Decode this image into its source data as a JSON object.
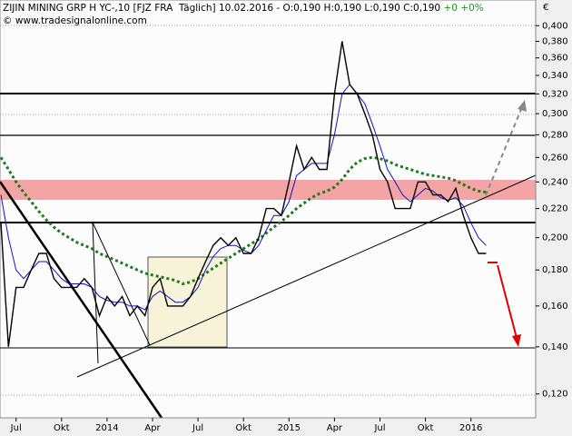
{
  "chart_data": {
    "type": "line",
    "title": "ZIJIN MINING GRP H YC-,10 [FJZ FRA  Täglich] 10.02.2016 - O:0,190 H:0,190 L:0,190 C:0,190",
    "change": "+0 +0%",
    "copyright": "© www.tradesignalonline.com",
    "currency": "€",
    "log_scale": true,
    "categories": [
      null,
      null,
      "Jul",
      null,
      null,
      null,
      null,
      null,
      "Okt",
      null,
      null,
      null,
      null,
      null,
      "2014",
      null,
      null,
      null,
      null,
      null,
      "Apr",
      null,
      null,
      null,
      null,
      null,
      "Jul",
      null,
      null,
      null,
      null,
      null,
      "Okt",
      null,
      null,
      null,
      null,
      null,
      "2015",
      null,
      null,
      null,
      null,
      null,
      "Apr",
      null,
      null,
      null,
      null,
      null,
      "Jul",
      null,
      null,
      null,
      null,
      null,
      "Okt",
      null,
      null,
      null,
      null,
      null,
      "2016",
      null,
      null
    ],
    "series": [
      {
        "color": "#000000",
        "values": [
          0.21,
          0.14,
          0.17,
          0.17,
          0.18,
          0.19,
          0.19,
          0.175,
          0.17,
          0.17,
          0.17,
          0.175,
          0.17,
          0.155,
          0.165,
          0.16,
          0.165,
          0.155,
          0.16,
          0.155,
          0.17,
          0.175,
          0.16,
          0.16,
          0.16,
          0.165,
          0.175,
          0.185,
          0.195,
          0.2,
          0.195,
          0.2,
          0.19,
          0.19,
          0.2,
          0.22,
          0.22,
          0.215,
          0.24,
          0.27,
          0.25,
          0.26,
          0.25,
          0.25,
          0.32,
          0.38,
          0.33,
          0.32,
          0.3,
          0.28,
          0.25,
          0.24,
          0.22,
          0.22,
          0.22,
          0.24,
          0.24,
          0.23,
          0.23,
          0.225,
          0.235,
          0.215,
          0.2,
          0.19,
          0.19
        ]
      },
      {
        "color": "#1010c0",
        "values": [
          0.23,
          0.2,
          0.18,
          0.175,
          0.18,
          0.185,
          0.185,
          0.18,
          0.175,
          0.172,
          0.172,
          0.172,
          0.17,
          0.165,
          0.163,
          0.162,
          0.162,
          0.16,
          0.16,
          0.158,
          0.165,
          0.168,
          0.165,
          0.162,
          0.162,
          0.165,
          0.17,
          0.18,
          0.188,
          0.193,
          0.195,
          0.195,
          0.192,
          0.19,
          0.195,
          0.205,
          0.215,
          0.215,
          0.225,
          0.245,
          0.25,
          0.255,
          0.255,
          0.255,
          0.28,
          0.32,
          0.33,
          0.32,
          0.31,
          0.29,
          0.27,
          0.25,
          0.24,
          0.23,
          0.225,
          0.23,
          0.235,
          0.233,
          0.228,
          0.226,
          0.228,
          0.222,
          0.21,
          0.2,
          0.195
        ]
      },
      {
        "color": "#1f7a1f",
        "dotted": true,
        "values": [
          0.26,
          0.25,
          0.24,
          0.232,
          0.225,
          0.218,
          0.212,
          0.207,
          0.203,
          0.2,
          0.197,
          0.195,
          0.193,
          0.19,
          0.188,
          0.186,
          0.184,
          0.182,
          0.18,
          0.178,
          0.177,
          0.176,
          0.175,
          0.174,
          0.172,
          0.173,
          0.175,
          0.178,
          0.181,
          0.184,
          0.187,
          0.19,
          0.193,
          0.196,
          0.199,
          0.203,
          0.207,
          0.211,
          0.215,
          0.22,
          0.224,
          0.228,
          0.231,
          0.233,
          0.236,
          0.242,
          0.25,
          0.256,
          0.259,
          0.26,
          0.259,
          0.257,
          0.254,
          0.252,
          0.25,
          0.248,
          0.246,
          0.245,
          0.244,
          0.243,
          0.241,
          0.238,
          0.235,
          0.233,
          0.232
        ]
      }
    ],
    "ylim": [
      0.111,
      0.435
    ],
    "yticks": [
      {
        "value": 0.12,
        "label": "0,120"
      },
      {
        "value": 0.14,
        "label": "0,140"
      },
      {
        "value": 0.16,
        "label": "0,160"
      },
      {
        "value": 0.18,
        "label": "0,180"
      },
      {
        "value": 0.2,
        "label": "0,200"
      },
      {
        "value": 0.22,
        "label": "0,220"
      },
      {
        "value": 0.24,
        "label": "0,240"
      },
      {
        "value": 0.26,
        "label": "0,260"
      },
      {
        "value": 0.28,
        "label": "0,280"
      },
      {
        "value": 0.3,
        "label": "0,300"
      },
      {
        "value": 0.32,
        "label": "0,320"
      },
      {
        "value": 0.34,
        "label": "0,340"
      },
      {
        "value": 0.36,
        "label": "0,360"
      },
      {
        "value": 0.38,
        "label": "0,380"
      },
      {
        "value": 0.4,
        "label": "0,400"
      }
    ]
  }
}
